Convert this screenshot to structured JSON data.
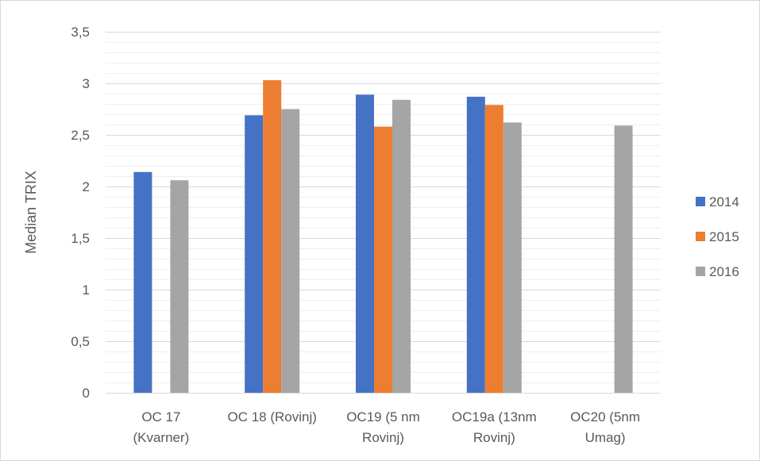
{
  "chart_data": {
    "type": "bar",
    "title": "",
    "xlabel": "",
    "ylabel": "Median TRIX",
    "ylim": [
      0,
      3.5
    ],
    "ytick_step": 0.5,
    "minor_step": 0.1,
    "ytick_labels": [
      "0",
      "0,5",
      "1",
      "1,5",
      "2",
      "2,5",
      "3",
      "3,5"
    ],
    "grid": true,
    "legend_position": "right",
    "categories": [
      [
        "OC 17",
        "(Kvarner)"
      ],
      [
        "OC 18 (Rovinj)"
      ],
      [
        "OC19 (5 nm",
        "Rovinj)"
      ],
      [
        "OC19a (13nm",
        "Rovinj)"
      ],
      [
        "OC20 (5nm",
        "Umag)"
      ]
    ],
    "series": [
      {
        "name": "2014",
        "color": "#4472c4",
        "values": [
          2.14,
          2.69,
          2.89,
          2.87,
          null
        ]
      },
      {
        "name": "2015",
        "color": "#ed7d31",
        "values": [
          null,
          3.03,
          2.58,
          2.79,
          null
        ]
      },
      {
        "name": "2016",
        "color": "#a5a5a5",
        "values": [
          2.06,
          2.75,
          2.84,
          2.62,
          2.59
        ]
      }
    ]
  }
}
